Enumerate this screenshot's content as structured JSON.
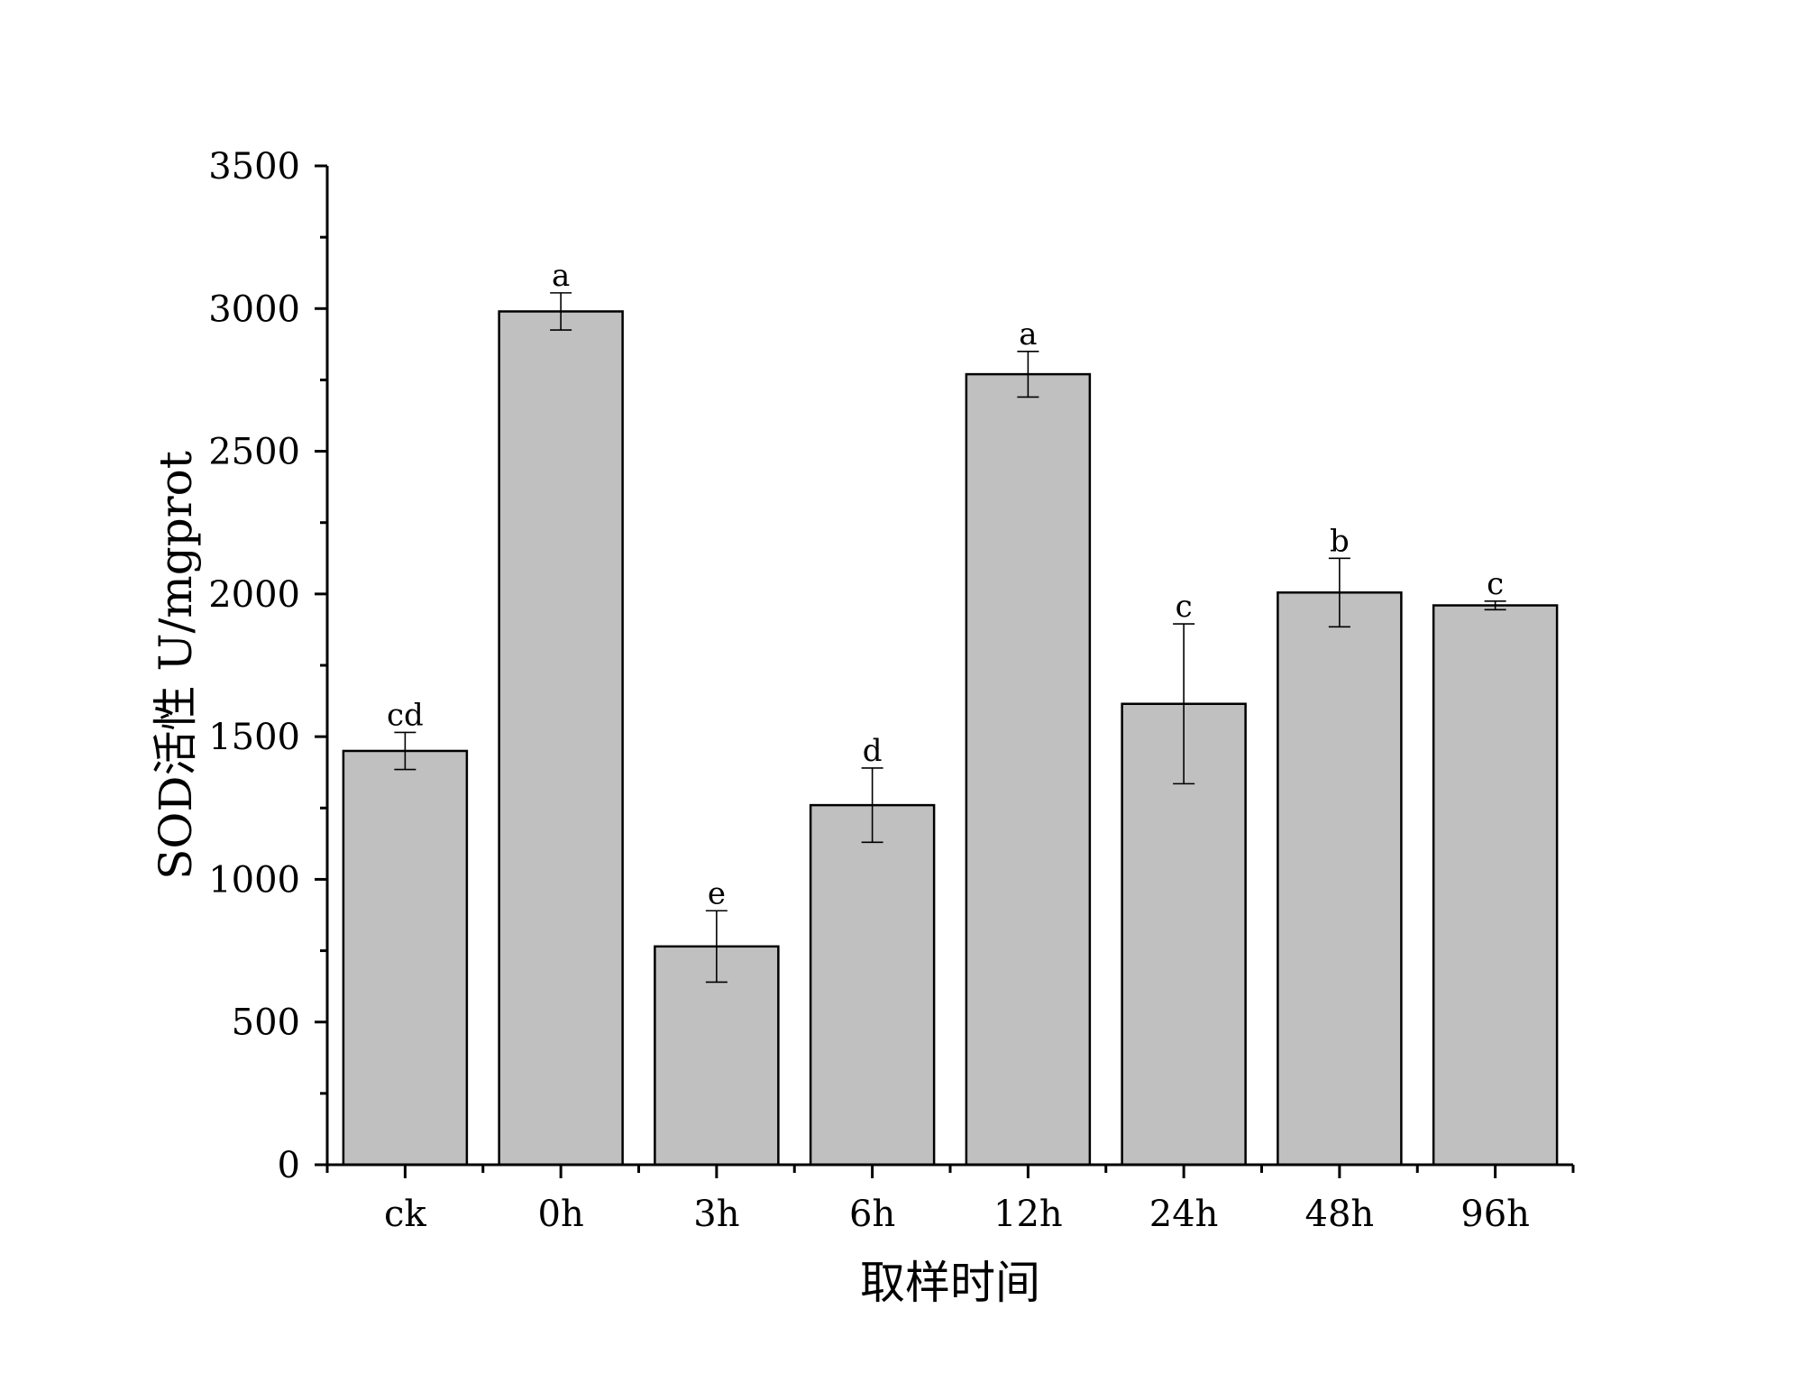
{
  "chart_data": {
    "type": "bar",
    "title": "",
    "xlabel": "取样时间",
    "ylabel": "SOD活性 U/mgprot",
    "categories": [
      "ck",
      "0h",
      "3h",
      "6h",
      "12h",
      "24h",
      "48h",
      "96h"
    ],
    "values": [
      1450,
      2990,
      765,
      1260,
      2770,
      1615,
      2005,
      1960
    ],
    "errors": [
      65,
      65,
      125,
      130,
      80,
      280,
      120,
      15
    ],
    "significance": [
      "cd",
      "a",
      "e",
      "d",
      "a",
      "c",
      "b",
      "c"
    ],
    "ylim": [
      0,
      3500
    ],
    "yticks": [
      "0",
      "500",
      "1000",
      "1500",
      "2000",
      "2500",
      "3000",
      "3500"
    ],
    "grid": false,
    "legend": "none",
    "colors": {
      "bar_fill": "#c0c0c0",
      "bar_stroke": "#000000",
      "axis": "#000000"
    }
  }
}
